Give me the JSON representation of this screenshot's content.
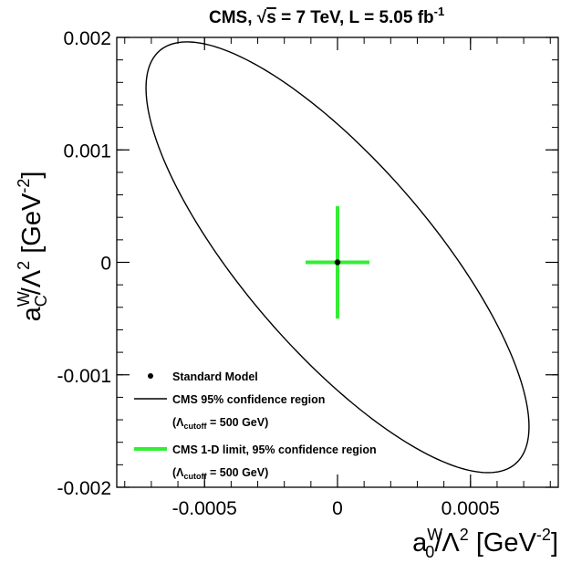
{
  "chart_data": {
    "type": "scatter",
    "title": {
      "prefix": "CMS, ",
      "sqrt": "√",
      "s": "s",
      "middle": " = 7 TeV, L = 5.05 fb",
      "sup": "-1"
    },
    "xlabel": {
      "a": "a",
      "sup": "W",
      "sub": "0",
      "rest": "/Λ",
      "sup2": "2",
      "unit": " [GeV",
      "unit_sup": "-2",
      "close": "]"
    },
    "ylabel": {
      "a": "a",
      "sup": "W",
      "sub": "C",
      "rest": "/Λ",
      "sup2": "2",
      "unit": " [GeV",
      "unit_sup": "-2",
      "close": "]"
    },
    "xlim": [
      -0.00083,
      0.00083
    ],
    "ylim": [
      -0.002,
      0.002
    ],
    "xticks": [
      {
        "value": -0.0005,
        "label": "-0.0005"
      },
      {
        "value": 0,
        "label": "0"
      },
      {
        "value": 0.0005,
        "label": "0.0005"
      }
    ],
    "yticks": [
      {
        "value": 0.002,
        "label": "0.002"
      },
      {
        "value": 0.001,
        "label": "0.001"
      },
      {
        "value": 0,
        "label": "0"
      },
      {
        "value": -0.001,
        "label": "-0.001"
      },
      {
        "value": -0.002,
        "label": "-0.002"
      }
    ],
    "grid": false,
    "legend_position": "bottom-left",
    "standard_model": {
      "x": 0,
      "y": 0
    },
    "confidence_region_95": {
      "type": "ellipse",
      "center": [
        0,
        4.5e-05
      ],
      "extreme_points": {
        "top": [
          -0.00044,
          0.00196
        ],
        "bottom": [
          0.00044,
          -0.00171
        ],
        "left": [
          -0.00072,
          0.00155
        ],
        "right": [
          0.00072,
          -0.00146
        ]
      }
    },
    "limit_1d_95": {
      "x": [
        -0.00012,
        0.00012
      ],
      "y": [
        -0.0005,
        0.0005
      ],
      "color": "#33ee33"
    },
    "legend": [
      {
        "marker": "dot",
        "label": "Standard Model"
      },
      {
        "marker": "line",
        "label": "CMS 95% confidence region"
      },
      {
        "marker": "none",
        "label": {
          "open": "(Λ",
          "sub": "cutoff",
          "close": " = 500 GeV)"
        }
      },
      {
        "marker": "thick-green-line",
        "label": "CMS 1-D limit, 95% confidence region"
      },
      {
        "marker": "none",
        "label": {
          "open": "(Λ",
          "sub": "cutoff",
          "close": " = 500 GeV)"
        }
      }
    ],
    "colors": {
      "axes": "#000000",
      "ellipse": "#000000",
      "limit": "#33ee33",
      "background": "#ffffff"
    }
  }
}
